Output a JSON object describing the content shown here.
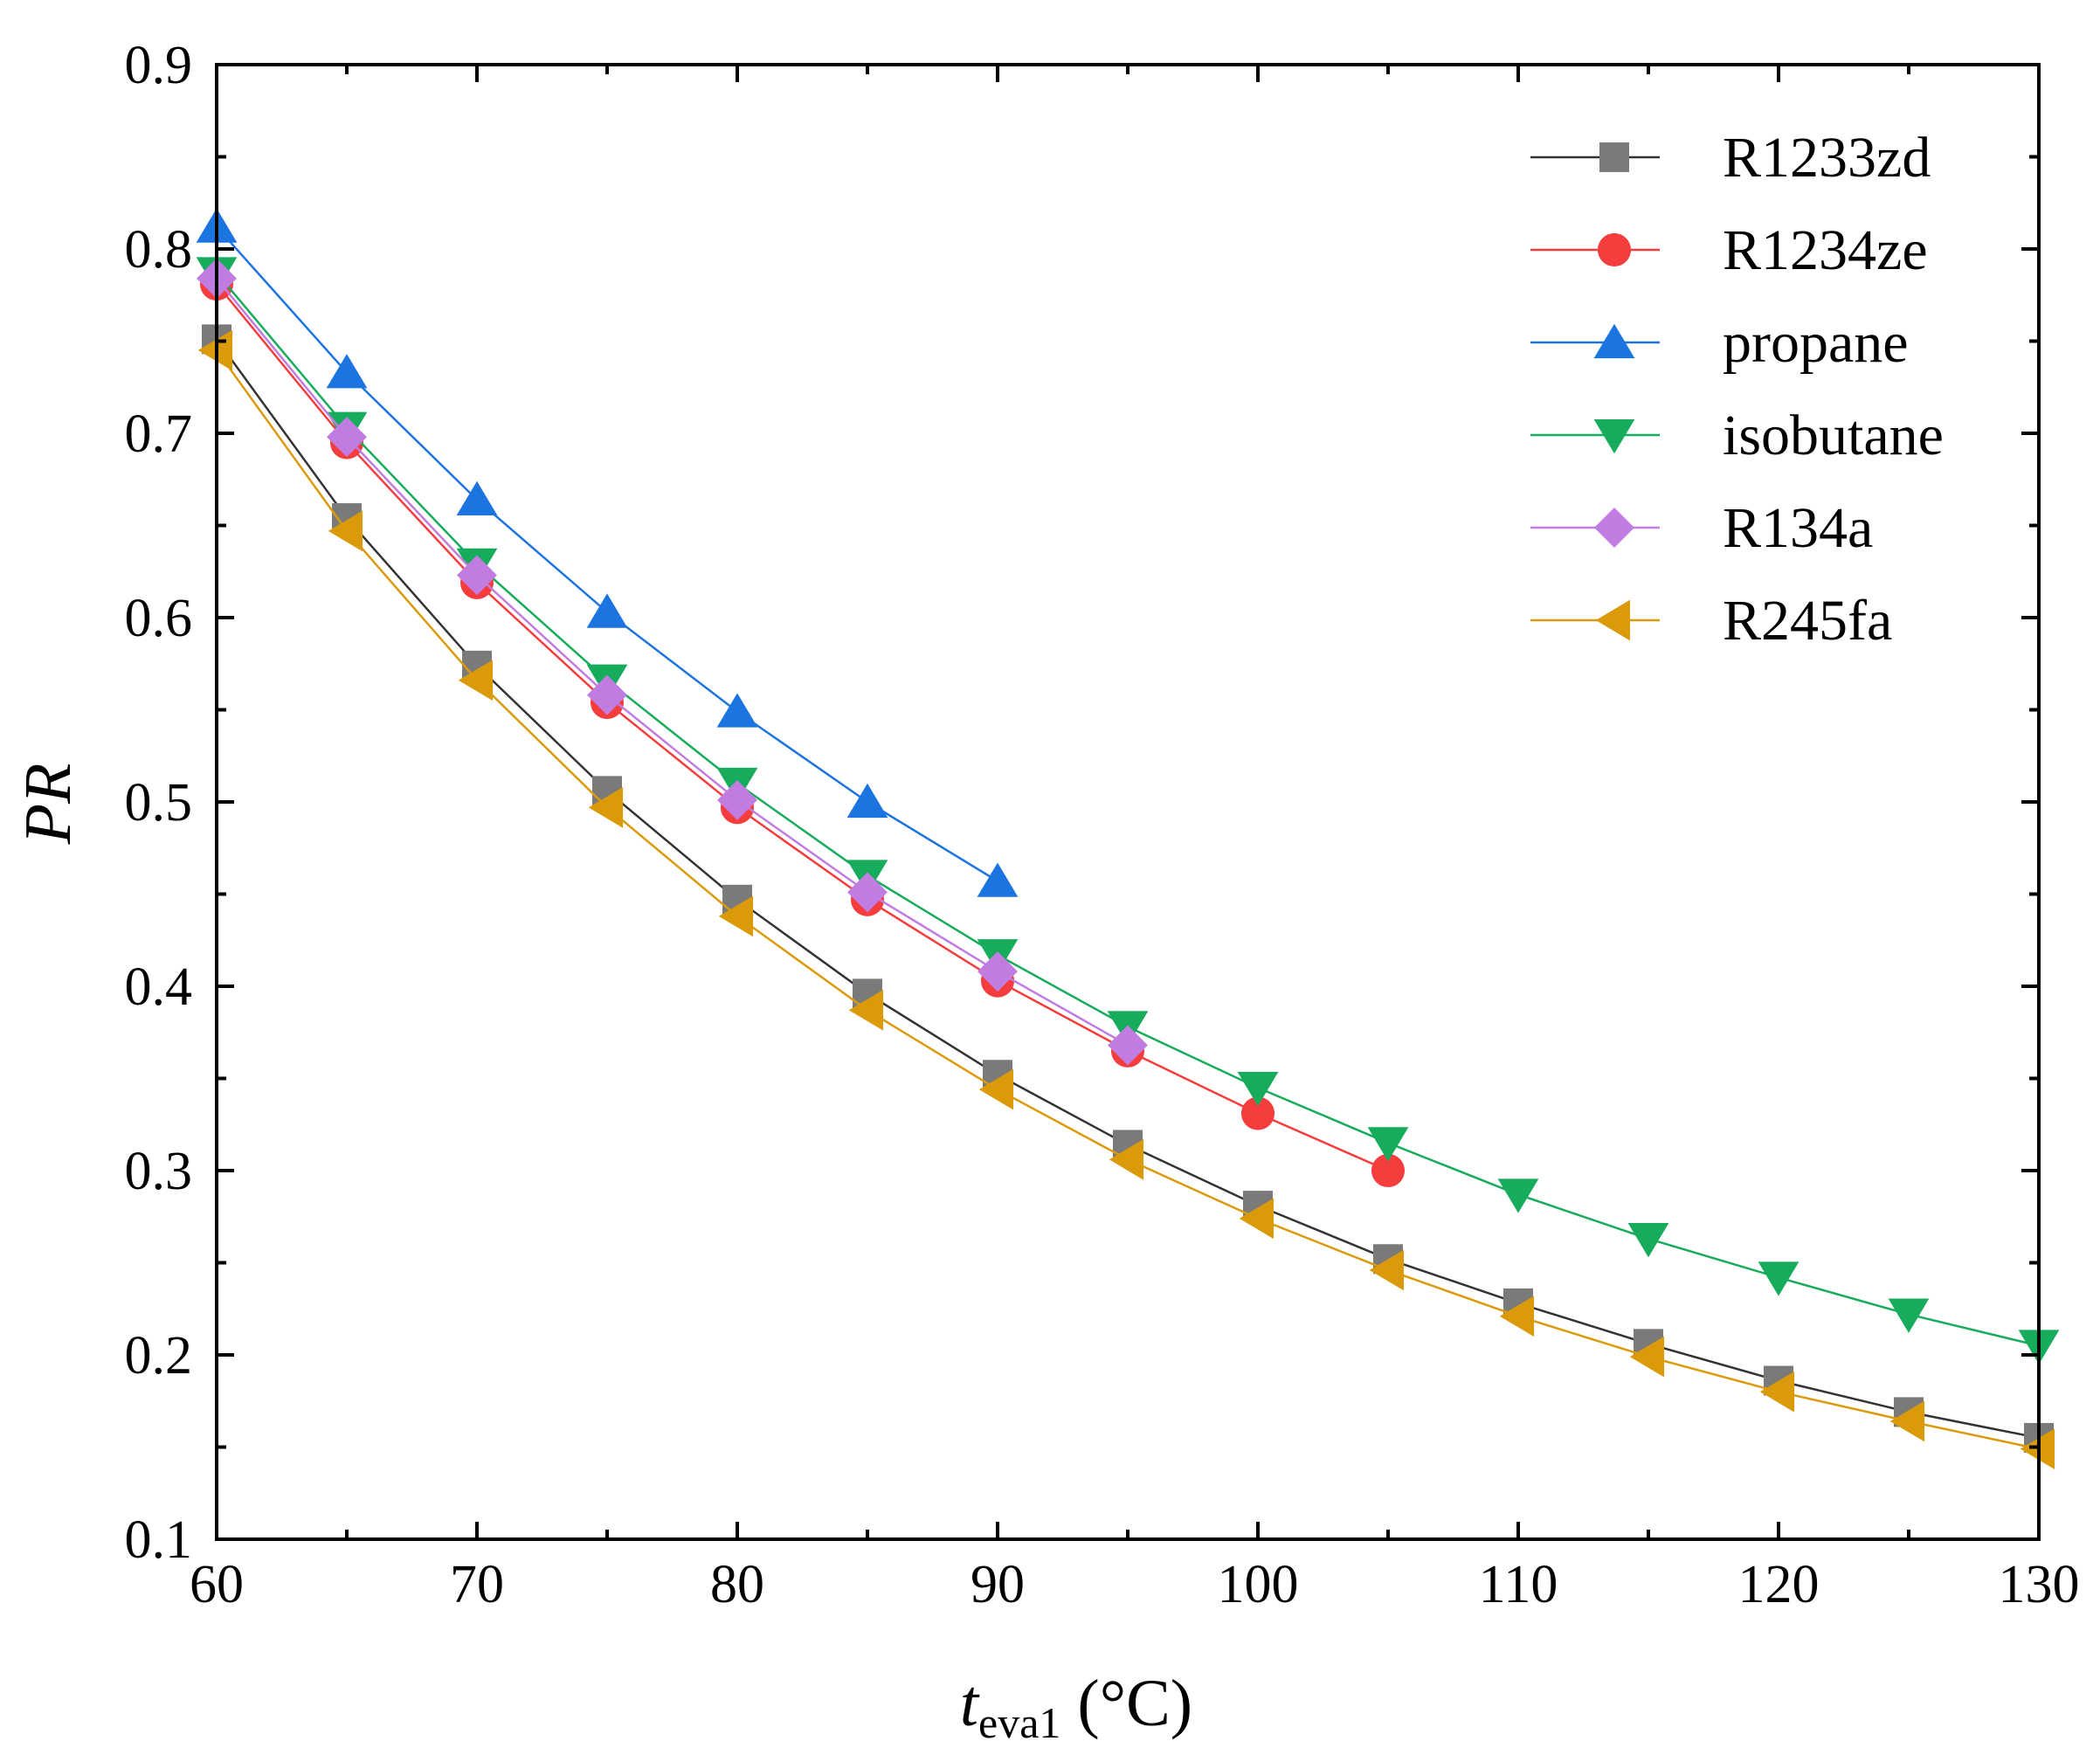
{
  "chart_data": {
    "type": "line",
    "title": "",
    "xlabel": {
      "main": "t",
      "sub": "eva1",
      "unit": " (°C)"
    },
    "ylabel": "PR",
    "xlim": [
      60,
      130
    ],
    "ylim": [
      0.1,
      0.9
    ],
    "xticks": [
      60,
      70,
      80,
      90,
      100,
      110,
      120,
      130
    ],
    "xtick_labels": [
      "60",
      "70",
      "80",
      "90",
      "100",
      "110",
      "120",
      "130"
    ],
    "yticks": [
      0.1,
      0.2,
      0.3,
      0.4,
      0.5,
      0.6,
      0.7,
      0.8,
      0.9
    ],
    "ytick_labels": [
      "0.1",
      "0.2",
      "0.3",
      "0.4",
      "0.5",
      "0.6",
      "0.7",
      "0.8",
      "0.9"
    ],
    "grid": false,
    "legend_position": "top-right",
    "series": [
      {
        "name": "R1233zd",
        "color": "#7a7a7a",
        "line_color": "#333333",
        "marker": "square",
        "x": [
          60,
          65,
          70,
          75,
          80,
          85,
          90,
          95,
          100,
          105,
          110,
          115,
          120,
          125,
          130
        ],
        "y": [
          0.751,
          0.654,
          0.574,
          0.506,
          0.447,
          0.396,
          0.352,
          0.314,
          0.281,
          0.252,
          0.228,
          0.206,
          0.186,
          0.169,
          0.155
        ]
      },
      {
        "name": "R1234ze",
        "color": "#f53d3d",
        "line_color": "#f53d3d",
        "marker": "circle",
        "x": [
          60,
          65,
          70,
          75,
          80,
          85,
          90,
          95,
          100,
          105
        ],
        "y": [
          0.781,
          0.695,
          0.619,
          0.554,
          0.497,
          0.447,
          0.403,
          0.365,
          0.331,
          0.3
        ]
      },
      {
        "name": "propane",
        "color": "#1c74e0",
        "line_color": "#1c74e0",
        "marker": "triangle-up",
        "x": [
          60,
          65,
          70,
          75,
          80,
          85,
          90
        ],
        "y": [
          0.812,
          0.733,
          0.664,
          0.603,
          0.549,
          0.5,
          0.457
        ]
      },
      {
        "name": "isobutane",
        "color": "#17ab5c",
        "line_color": "#17ab5c",
        "marker": "triangle-down",
        "x": [
          60,
          65,
          70,
          75,
          80,
          85,
          90,
          95,
          100,
          105,
          110,
          115,
          120,
          125,
          130
        ],
        "y": [
          0.787,
          0.703,
          0.629,
          0.566,
          0.51,
          0.46,
          0.417,
          0.378,
          0.345,
          0.315,
          0.287,
          0.263,
          0.242,
          0.222,
          0.205
        ]
      },
      {
        "name": "R134a",
        "color": "#c07ce0",
        "line_color": "#c07ce0",
        "marker": "diamond",
        "x": [
          60,
          65,
          70,
          75,
          80,
          85,
          90,
          95
        ],
        "y": [
          0.784,
          0.698,
          0.623,
          0.558,
          0.501,
          0.451,
          0.408,
          0.368
        ]
      },
      {
        "name": "R245fa",
        "color": "#da9a0a",
        "line_color": "#da9a0a",
        "marker": "triangle-left",
        "x": [
          60,
          65,
          70,
          75,
          80,
          85,
          90,
          95,
          100,
          105,
          110,
          115,
          120,
          125,
          130
        ],
        "y": [
          0.745,
          0.647,
          0.566,
          0.497,
          0.438,
          0.387,
          0.344,
          0.306,
          0.274,
          0.246,
          0.221,
          0.199,
          0.18,
          0.164,
          0.149
        ]
      }
    ]
  }
}
